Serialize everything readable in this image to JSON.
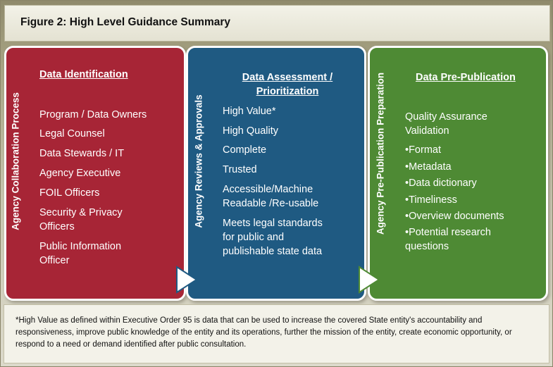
{
  "title": "Figure 2:  High Level Guidance Summary",
  "panels": [
    {
      "side_label": "Agency Collaboration Process",
      "heading": "Data Identification",
      "items": [
        "Program / Data Owners",
        "Legal Counsel",
        "Data Stewards / IT",
        "Agency Executive",
        "FOIL Officers",
        "Security & Privacy",
        "Officers",
        "Public Information",
        "Officer"
      ],
      "color": "#a72536"
    },
    {
      "side_label": "Agency Reviews & Approvals",
      "heading_line1": "Data Assessment /",
      "heading_line2": "Prioritization",
      "items": [
        "High Value*",
        "High Quality",
        "Complete",
        "Trusted",
        "Accessible/Machine",
        "Readable /Re-usable",
        "Meets legal standards",
        "for public and",
        "publishable state data"
      ],
      "color": "#1f5a82"
    },
    {
      "side_label": "Agency Pre-Publication Preparation",
      "heading": "Data Pre-Publication",
      "items": [
        "Quality Assurance",
        "Validation",
        "•Format",
        "•Metadata",
        "•Data dictionary",
        "•Timeliness",
        "•Overview documents",
        "•Potential research",
        "questions"
      ],
      "color": "#4e8a34"
    }
  ],
  "footnote": "*High Value as defined within Executive Order 95 is data that can be used to increase the covered State entity's accountability and responsiveness, improve public knowledge of the entity and its operations, further the mission of the entity, create economic opportunity, or respond to a need or demand identified after public consultation."
}
